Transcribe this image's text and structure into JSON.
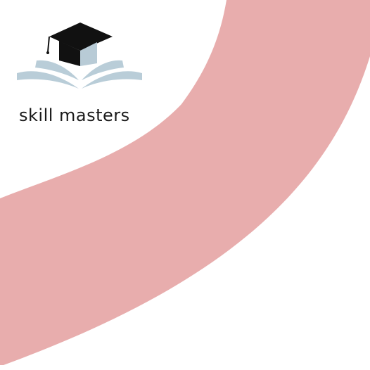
{
  "brand": {
    "name": "skill masters",
    "logo_icon": "graduation-cap-open-book-icon"
  },
  "colors": {
    "swoosh": "#e8adad",
    "cap": "#111111",
    "cap_side": "#b8cbd6",
    "book": "#b9cdd8",
    "text": "#1a1a1a",
    "background": "#ffffff"
  }
}
